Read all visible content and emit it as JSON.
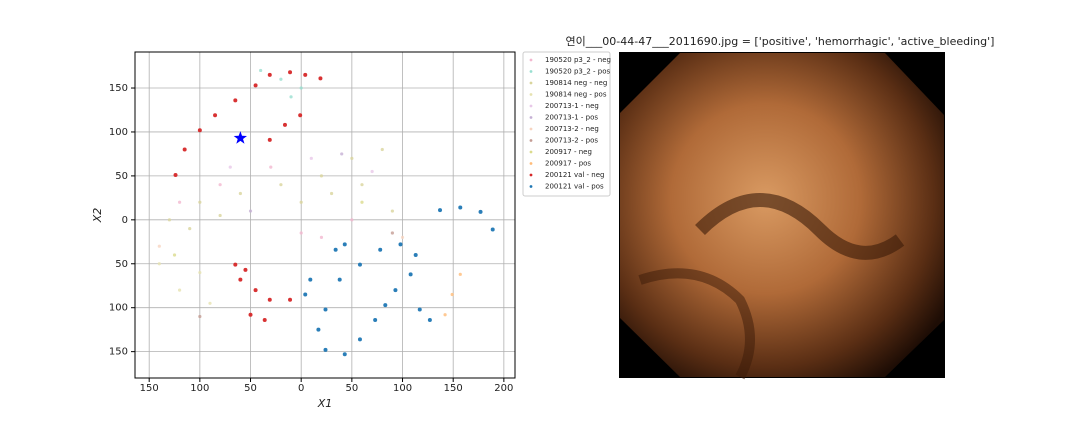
{
  "chart_data": {
    "type": "scatter",
    "xlabel": "X1",
    "ylabel": "X2",
    "xlim": [
      -164,
      211
    ],
    "ylim": [
      -180,
      191
    ],
    "xticks": [
      {
        "value": -150,
        "label": "150"
      },
      {
        "value": -100,
        "label": "100"
      },
      {
        "value": -50,
        "label": "50"
      },
      0,
      50,
      100,
      150,
      200
    ],
    "yticks": [
      {
        "value": -150,
        "label": "150"
      },
      {
        "value": -100,
        "label": "100"
      },
      {
        "value": -50,
        "label": "50"
      },
      0,
      50,
      100,
      150
    ],
    "grid": true,
    "legend": "outside right",
    "series": [
      {
        "name": "190520 p3_2 - neg",
        "color": "#f2b8cf",
        "x": [
          -120,
          -80,
          -30,
          0,
          20,
          50
        ],
        "y": [
          20,
          40,
          60,
          -15,
          -20,
          0
        ]
      },
      {
        "name": "190520 p3_2 - pos",
        "color": "#98dfd0",
        "x": [
          -40,
          -20,
          0,
          -10
        ],
        "y": [
          170,
          160,
          150,
          140
        ]
      },
      {
        "name": "190814 neg - neg",
        "color": "#d9d59c",
        "x": [
          -130,
          -100,
          -60,
          -20,
          20,
          50,
          80,
          -110,
          -80,
          0,
          30,
          60,
          90
        ],
        "y": [
          0,
          20,
          30,
          40,
          50,
          70,
          80,
          -10,
          5,
          20,
          30,
          40,
          10
        ]
      },
      {
        "name": "190814 neg - pos",
        "color": "#e6e2b0",
        "x": [
          -140,
          -120,
          -90,
          -100
        ],
        "y": [
          -50,
          -80,
          -95,
          -60
        ]
      },
      {
        "name": "200713-1 - neg",
        "color": "#e8c8e8",
        "x": [
          -70,
          10,
          70
        ],
        "y": [
          60,
          70,
          55
        ]
      },
      {
        "name": "200713-1 - pos",
        "color": "#c5b0d5",
        "x": [
          -50,
          40
        ],
        "y": [
          10,
          75
        ]
      },
      {
        "name": "200713-2 - neg",
        "color": "#f7d4c0",
        "x": [
          -140,
          100
        ],
        "y": [
          -30,
          -20
        ]
      },
      {
        "name": "200713-2 - pos",
        "color": "#c49c94",
        "x": [
          -100,
          90
        ],
        "y": [
          -110,
          -15
        ]
      },
      {
        "name": "200917 - neg",
        "color": "#dbdb8d",
        "x": [
          -125,
          60
        ],
        "y": [
          -40,
          20
        ]
      },
      {
        "name": "200917 - pos",
        "color": "#ffbb78",
        "x": [
          142,
          149,
          157
        ],
        "y": [
          -108,
          -85,
          -62
        ]
      },
      {
        "name": "200121 val - neg",
        "color": "#d62728",
        "x": [
          -124,
          -115,
          -100,
          -85,
          -65,
          -45,
          -31,
          -11,
          4,
          19,
          -31,
          -16,
          -1,
          -65,
          -60,
          -45,
          -31,
          -11,
          -50,
          -36,
          -55
        ],
        "y": [
          51,
          80,
          102,
          119,
          136,
          153,
          165,
          168,
          165,
          161,
          91,
          108,
          119,
          -51,
          -68,
          -80,
          -91,
          -91,
          -108,
          -114,
          -57
        ]
      },
      {
        "name": "200121 val - pos",
        "color": "#1f77b4",
        "x": [
          137,
          157,
          177,
          189,
          9,
          38,
          58,
          78,
          98,
          113,
          108,
          93,
          83,
          73,
          58,
          43,
          24,
          17,
          24,
          34,
          43,
          4,
          117,
          127
        ],
        "y": [
          11,
          14,
          9,
          -11,
          -68,
          -68,
          -51,
          -34,
          -28,
          -40,
          -62,
          -80,
          -97,
          -114,
          -136,
          -153,
          -148,
          -125,
          -102,
          -34,
          -28,
          -85,
          -102,
          -114
        ]
      }
    ],
    "highlight": {
      "x": -60,
      "y": 93,
      "color": "#0000ff"
    }
  },
  "image": {
    "title": "연이___00-44-47___2011690.jpg = ['positive', 'hemorrhagic', 'active_bleeding']"
  }
}
